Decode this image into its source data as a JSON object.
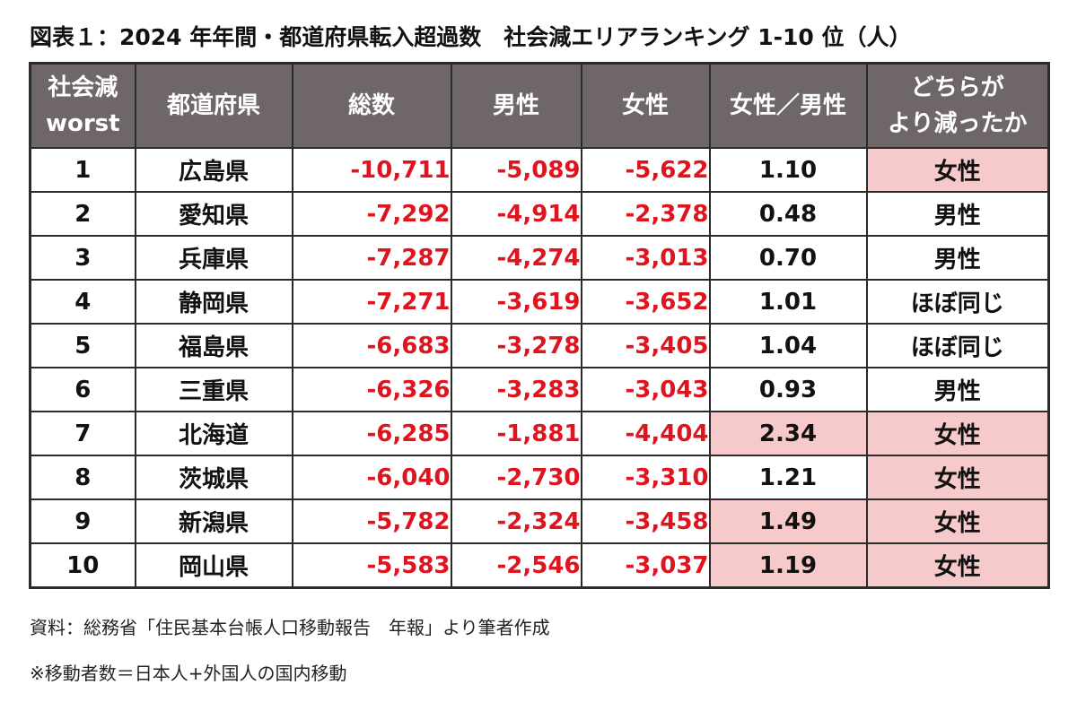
{
  "title": "図表１：2024 年年間・都道府県転入超過数　社会減エリアランキング 1-10 位（人）",
  "headers": {
    "rank_line1": "社会減",
    "rank_line2": "worst",
    "prefecture": "都道府県",
    "total": "総数",
    "male": "男性",
    "female": "女性",
    "ratio": "女性／男性",
    "which_line1": "どちらが",
    "which_line2": "より減ったか"
  },
  "rows": [
    {
      "rank": "1",
      "prefecture": "広島県",
      "total": "-10,711",
      "male": "-5,089",
      "female": "-5,622",
      "ratio": "1.10",
      "which": "女性",
      "ratio_highlight": false,
      "which_highlight": true
    },
    {
      "rank": "2",
      "prefecture": "愛知県",
      "total": "-7,292",
      "male": "-4,914",
      "female": "-2,378",
      "ratio": "0.48",
      "which": "男性",
      "ratio_highlight": false,
      "which_highlight": false
    },
    {
      "rank": "3",
      "prefecture": "兵庫県",
      "total": "-7,287",
      "male": "-4,274",
      "female": "-3,013",
      "ratio": "0.70",
      "which": "男性",
      "ratio_highlight": false,
      "which_highlight": false
    },
    {
      "rank": "4",
      "prefecture": "静岡県",
      "total": "-7,271",
      "male": "-3,619",
      "female": "-3,652",
      "ratio": "1.01",
      "which": "ほぼ同じ",
      "ratio_highlight": false,
      "which_highlight": false
    },
    {
      "rank": "5",
      "prefecture": "福島県",
      "total": "-6,683",
      "male": "-3,278",
      "female": "-3,405",
      "ratio": "1.04",
      "which": "ほぼ同じ",
      "ratio_highlight": false,
      "which_highlight": false
    },
    {
      "rank": "6",
      "prefecture": "三重県",
      "total": "-6,326",
      "male": "-3,283",
      "female": "-3,043",
      "ratio": "0.93",
      "which": "男性",
      "ratio_highlight": false,
      "which_highlight": false
    },
    {
      "rank": "7",
      "prefecture": "北海道",
      "total": "-6,285",
      "male": "-1,881",
      "female": "-4,404",
      "ratio": "2.34",
      "which": "女性",
      "ratio_highlight": true,
      "which_highlight": true
    },
    {
      "rank": "8",
      "prefecture": "茨城県",
      "total": "-6,040",
      "male": "-2,730",
      "female": "-3,310",
      "ratio": "1.21",
      "which": "女性",
      "ratio_highlight": false,
      "which_highlight": true
    },
    {
      "rank": "9",
      "prefecture": "新潟県",
      "total": "-5,782",
      "male": "-2,324",
      "female": "-3,458",
      "ratio": "1.49",
      "which": "女性",
      "ratio_highlight": true,
      "which_highlight": true
    },
    {
      "rank": "10",
      "prefecture": "岡山県",
      "total": "-5,583",
      "male": "-2,546",
      "female": "-3,037",
      "ratio": "1.19",
      "which": "女性",
      "ratio_highlight": true,
      "which_highlight": true
    }
  ],
  "notes": {
    "source": "資料：総務省「住民基本台帳人口移動報告　年報」より筆者作成",
    "footnote": "※移動者数＝日本人+外国人の国内移動"
  },
  "colors": {
    "header_bg": "#6f6767",
    "negative_text": "#e0141e",
    "highlight_bg": "#f6c9ca",
    "border": "#2b2b2b"
  }
}
